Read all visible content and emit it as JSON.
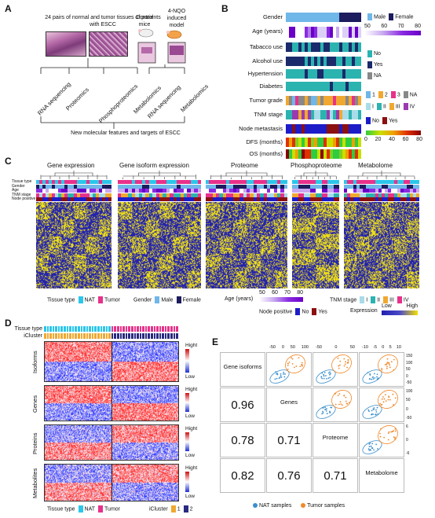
{
  "panelA": {
    "label": "A",
    "top_text": "24 pairs of normal and tumor tissues of patients with ESCC",
    "control_label": "Control mice",
    "model_label": "4-NQO induced model",
    "omics_human": [
      "RNA sequencing",
      "Proteomics",
      "Phosphoproteomics",
      "Metabolomics"
    ],
    "omics_mouse": [
      "RNA sequencing",
      "Metabolomics"
    ],
    "bottom_text": "New molecular features and targets of ESCC"
  },
  "panelB": {
    "label": "B",
    "rows": [
      "Gender",
      "Age (years)",
      "Tabacco use",
      "Alcohol use",
      "Hypertension",
      "Diabetes",
      "Tumor grade",
      "TNM stage",
      "Node metastasis",
      "DFS (months)",
      "OS (months)"
    ],
    "legend_gender": [
      "Male",
      "Female"
    ],
    "legend_age_ticks": [
      "50",
      "60",
      "70",
      "80"
    ],
    "legend_yesno": [
      "No",
      "Yes",
      "NA"
    ],
    "legend_grade": [
      "1",
      "2",
      "3",
      "NA"
    ],
    "legend_tnm": [
      "I",
      "II",
      "III",
      "IV"
    ],
    "legend_node": [
      "No",
      "Yes"
    ],
    "legend_dfs_ticks": [
      "0",
      "20",
      "40",
      "60",
      "80"
    ]
  },
  "panelC": {
    "label": "C",
    "titles": [
      "Gene expression",
      "Gene isoform expression",
      "Proteome",
      "Phosphoproteome",
      "Metabolome"
    ],
    "row_labels": [
      "Tissue type",
      "Gender",
      "Age",
      "TNM stage",
      "Node positive"
    ],
    "legend_tissue_title": "Tissue type",
    "legend_tissue": [
      "NAT",
      "Tumor"
    ],
    "legend_gender_title": "Gender",
    "legend_gender": [
      "Male",
      "Female"
    ],
    "legend_age_title": "Age (years)",
    "legend_age_ticks": [
      "50",
      "60",
      "70",
      "80"
    ],
    "legend_tnm_title": "TNM stage",
    "legend_tnm": [
      "I",
      "II",
      "III",
      "IV"
    ],
    "legend_node_title": "Node positive",
    "legend_node": [
      "No",
      "Yes"
    ],
    "legend_expr_title": "Expression",
    "legend_expr": [
      "Low",
      "High"
    ]
  },
  "panelD": {
    "label": "D",
    "track_labels": [
      "Tissue type",
      "iCluster"
    ],
    "blocks": [
      "Isoforms",
      "Genes",
      "Proteins",
      "Metabolites"
    ],
    "scale_high": "Hight",
    "scale_low": "Low",
    "legend_tissue_title": "Tissue type",
    "legend_tissue": [
      "NAT",
      "Tumor"
    ],
    "legend_icluster_title": "iCluster",
    "legend_icluster": [
      "1",
      "2"
    ]
  },
  "panelE": {
    "label": "E",
    "diag": [
      "Gene isoforms",
      "Genes",
      "Proteome",
      "Metabolome"
    ],
    "corr": [
      [
        "0.96"
      ],
      [
        "0.78",
        "0.71"
      ],
      [
        "0.82",
        "0.76",
        "0.71"
      ]
    ],
    "top_ticks": [
      [
        "-50",
        "0",
        "50",
        "100"
      ],
      [
        "-50",
        "0",
        "50"
      ],
      [
        "-10",
        "-5",
        "0",
        "5",
        "10"
      ]
    ],
    "right_ticks": [
      [
        "150",
        "100",
        "50",
        "0",
        "-50"
      ],
      [
        "100",
        "50",
        "0",
        "-50"
      ],
      [
        "6",
        "0",
        "-6"
      ]
    ],
    "legend": [
      "NAT samples",
      "Tumor samples"
    ],
    "colors": {
      "nat": "#3a8fcc",
      "tumor": "#f0892b"
    }
  },
  "colors": {
    "nat": "#2bc6ea",
    "tumor": "#e8318a",
    "male": "#6fb7e8",
    "female": "#1c1c5e",
    "teal": "#2bb3b0",
    "navy": "#1b2a6b",
    "gray": "#888888",
    "yellow": "#f5e000",
    "blue": "#2020b0"
  }
}
